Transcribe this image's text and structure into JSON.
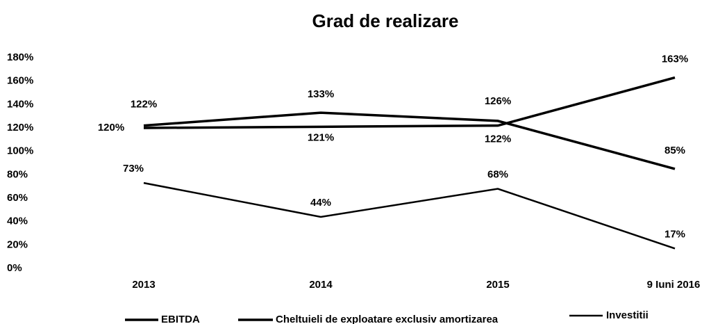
{
  "chart_data": {
    "type": "line",
    "title": "Grad de realizare",
    "categories": [
      "2013",
      "2014",
      "2015",
      "9 Iuni 2016"
    ],
    "series": [
      {
        "name": "EBITDA",
        "color": "#000000",
        "values": [
          120,
          121,
          122,
          163
        ],
        "value_labels": [
          "120%",
          "121%",
          "122%",
          "163%"
        ]
      },
      {
        "name": "Cheltuieli de exploatare exclusiv amortizarea",
        "color": "#000000",
        "values": [
          122,
          133,
          126,
          85
        ],
        "value_labels": [
          "122%",
          "133%",
          "126%",
          "85%"
        ]
      },
      {
        "name": "Investitii",
        "color": "#000000",
        "values": [
          73,
          44,
          68,
          17
        ],
        "value_labels": [
          "73%",
          "44%",
          "68%",
          "17%"
        ]
      }
    ],
    "ylim": [
      0,
      180
    ],
    "yticks": [
      {
        "value": 0,
        "label": "0%"
      },
      {
        "value": 20,
        "label": "20%"
      },
      {
        "value": 40,
        "label": "40%"
      },
      {
        "value": 60,
        "label": "60%"
      },
      {
        "value": 80,
        "label": "80%"
      },
      {
        "value": 100,
        "label": "100%"
      },
      {
        "value": 120,
        "label": "120%"
      },
      {
        "value": 140,
        "label": "140%"
      },
      {
        "value": 160,
        "label": "160%"
      },
      {
        "value": 180,
        "label": "180%"
      }
    ],
    "grid": false,
    "legend": "bottom"
  }
}
